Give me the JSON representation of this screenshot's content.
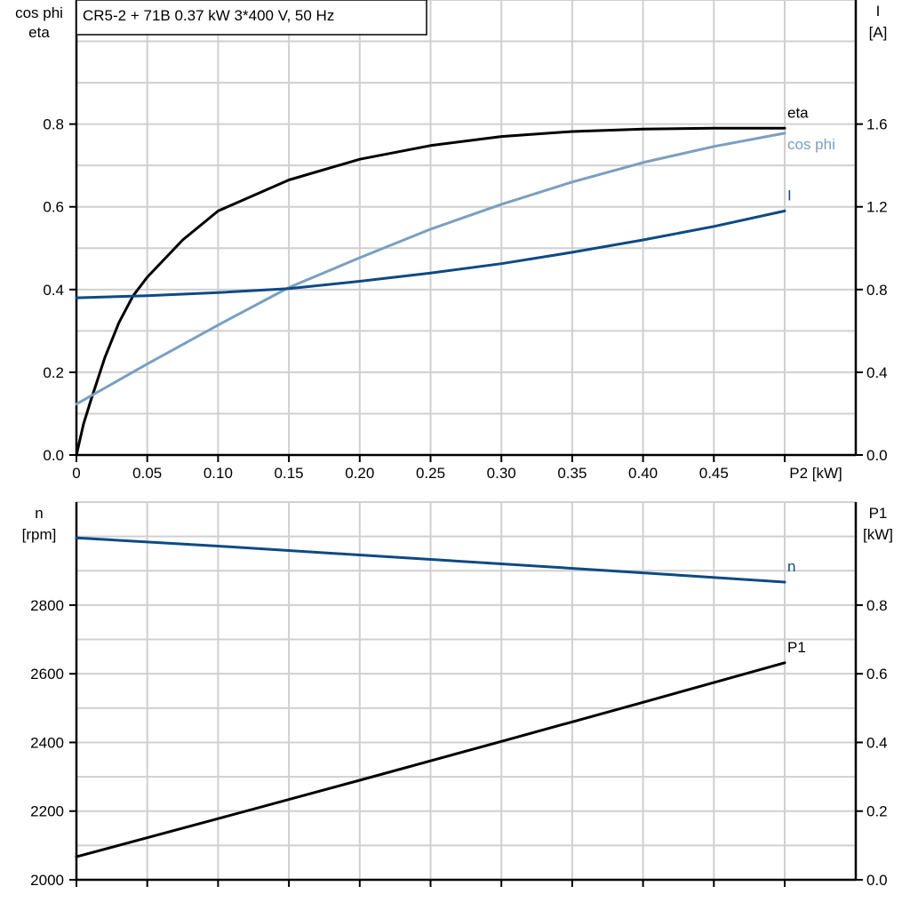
{
  "chart_data": [
    {
      "type": "line",
      "title": "CR5-2 + 71B   0.37 kW   3*400 V, 50 Hz",
      "xlabel": "P2 [kW]",
      "ylabel_left": [
        "cos phi",
        "eta"
      ],
      "ylabel_right": [
        "I",
        "[A]"
      ],
      "xlim": [
        0,
        0.5
      ],
      "ylim_left": [
        0,
        1.1
      ],
      "ylim_right": [
        0,
        2.2
      ],
      "xticks": [
        "0",
        "0.05",
        "0.10",
        "0.15",
        "0.20",
        "0.25",
        "0.30",
        "0.35",
        "0.40",
        "0.45"
      ],
      "xtick_values": [
        0,
        0.05,
        0.1,
        0.15,
        0.2,
        0.25,
        0.3,
        0.35,
        0.4,
        0.45
      ],
      "yticks_left": [
        "0.0",
        "0.2",
        "0.4",
        "0.6",
        "0.8"
      ],
      "ytick_left_values": [
        0,
        0.2,
        0.4,
        0.6,
        0.8
      ],
      "yticks_right": [
        "0.0",
        "0.4",
        "0.8",
        "1.2",
        "1.6"
      ],
      "ytick_right_values": [
        0,
        0.4,
        0.8,
        1.2,
        1.6
      ],
      "grid": true,
      "series": [
        {
          "name": "eta",
          "axis": "left",
          "color": "#000000",
          "x": [
            0,
            0.005,
            0.01,
            0.02,
            0.03,
            0.04,
            0.05,
            0.075,
            0.1,
            0.15,
            0.2,
            0.25,
            0.3,
            0.35,
            0.4,
            0.45,
            0.5
          ],
          "y": [
            0,
            0.075,
            0.13,
            0.235,
            0.32,
            0.385,
            0.43,
            0.52,
            0.59,
            0.665,
            0.715,
            0.748,
            0.77,
            0.782,
            0.788,
            0.79,
            0.79
          ]
        },
        {
          "name": "cos phi",
          "axis": "left",
          "color": "#7a9fc0",
          "x": [
            0,
            0.05,
            0.1,
            0.15,
            0.2,
            0.25,
            0.3,
            0.35,
            0.4,
            0.45,
            0.5
          ],
          "y": [
            0.123,
            0.22,
            0.314,
            0.405,
            0.477,
            0.546,
            0.606,
            0.66,
            0.707,
            0.746,
            0.778
          ]
        },
        {
          "name": "I",
          "axis": "right",
          "color": "#0d4a85",
          "x": [
            0,
            0.05,
            0.1,
            0.15,
            0.2,
            0.25,
            0.3,
            0.35,
            0.4,
            0.45,
            0.5
          ],
          "y": [
            0.76,
            0.77,
            0.785,
            0.805,
            0.84,
            0.88,
            0.925,
            0.98,
            1.04,
            1.105,
            1.18
          ]
        }
      ]
    },
    {
      "type": "line",
      "xlim": [
        0,
        0.5
      ],
      "ylabel_left": [
        "n",
        "[rpm]"
      ],
      "ylabel_right": [
        "P1",
        "[kW]"
      ],
      "ylim_left": [
        2000,
        3100
      ],
      "ylim_right": [
        0,
        1.1
      ],
      "yticks_left": [
        "2000",
        "2200",
        "2400",
        "2600",
        "2800"
      ],
      "ytick_left_values": [
        2000,
        2200,
        2400,
        2600,
        2800
      ],
      "yticks_right": [
        "0.0",
        "0.2",
        "0.4",
        "0.6",
        "0.8"
      ],
      "ytick_right_values": [
        0,
        0.2,
        0.4,
        0.6,
        0.8
      ],
      "grid": true,
      "series": [
        {
          "name": "n",
          "axis": "left",
          "color": "#0d4a85",
          "x": [
            0,
            0.1,
            0.2,
            0.3,
            0.4,
            0.5
          ],
          "y": [
            2996,
            2972,
            2946,
            2920,
            2894,
            2867
          ]
        },
        {
          "name": "P1",
          "axis": "right",
          "color": "#000000",
          "x": [
            0,
            0.1,
            0.2,
            0.3,
            0.4,
            0.5
          ],
          "y": [
            0.067,
            0.178,
            0.29,
            0.403,
            0.517,
            0.632
          ]
        }
      ]
    }
  ]
}
